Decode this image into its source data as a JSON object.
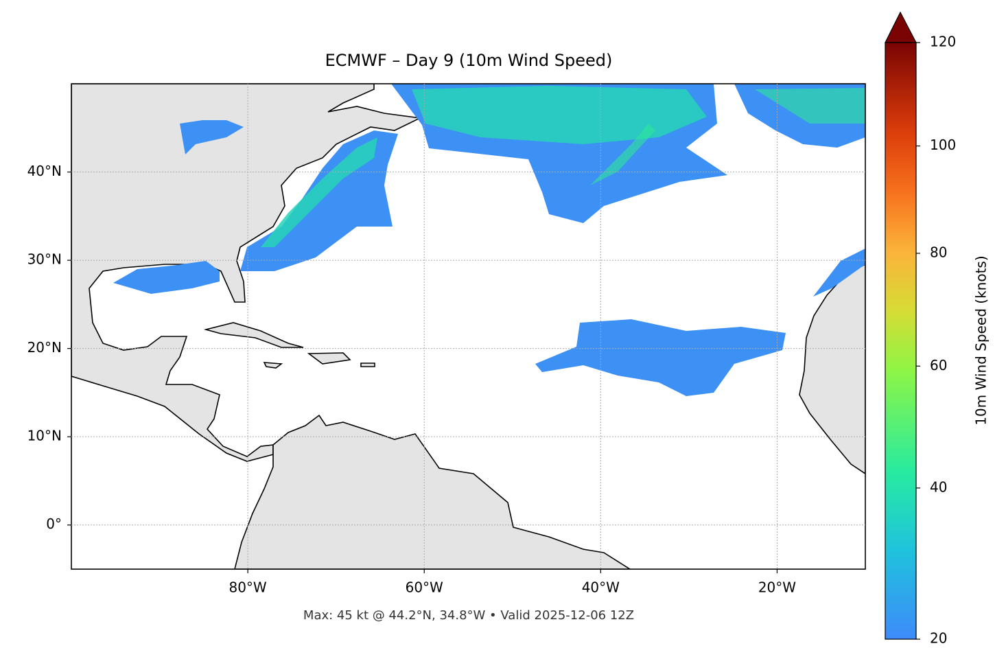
{
  "chart_data": {
    "type": "map",
    "title": "ECMWF – Day 9 (10m Wind Speed)",
    "xlim": [
      -100,
      -10
    ],
    "ylim": [
      -5,
      50
    ],
    "xticks": [
      {
        "value": -80,
        "label": "80°W"
      },
      {
        "value": -60,
        "label": "60°W"
      },
      {
        "value": -40,
        "label": "40°W"
      },
      {
        "value": -20,
        "label": "20°W"
      }
    ],
    "yticks": [
      {
        "value": 0,
        "label": "0°"
      },
      {
        "value": 10,
        "label": "10°N"
      },
      {
        "value": 20,
        "label": "20°N"
      },
      {
        "value": 30,
        "label": "30°N"
      },
      {
        "value": 40,
        "label": "40°N"
      }
    ],
    "grid": true,
    "colorbar": {
      "label": "10m Wind Speed (knots)",
      "lim": [
        20,
        120
      ],
      "ticks": [
        20,
        40,
        60,
        80,
        100,
        120
      ],
      "extend": "max"
    },
    "footnote": "Max: 45 kt @ 44.2°N, 34.8°W • Valid 2025-12-06 12Z"
  }
}
